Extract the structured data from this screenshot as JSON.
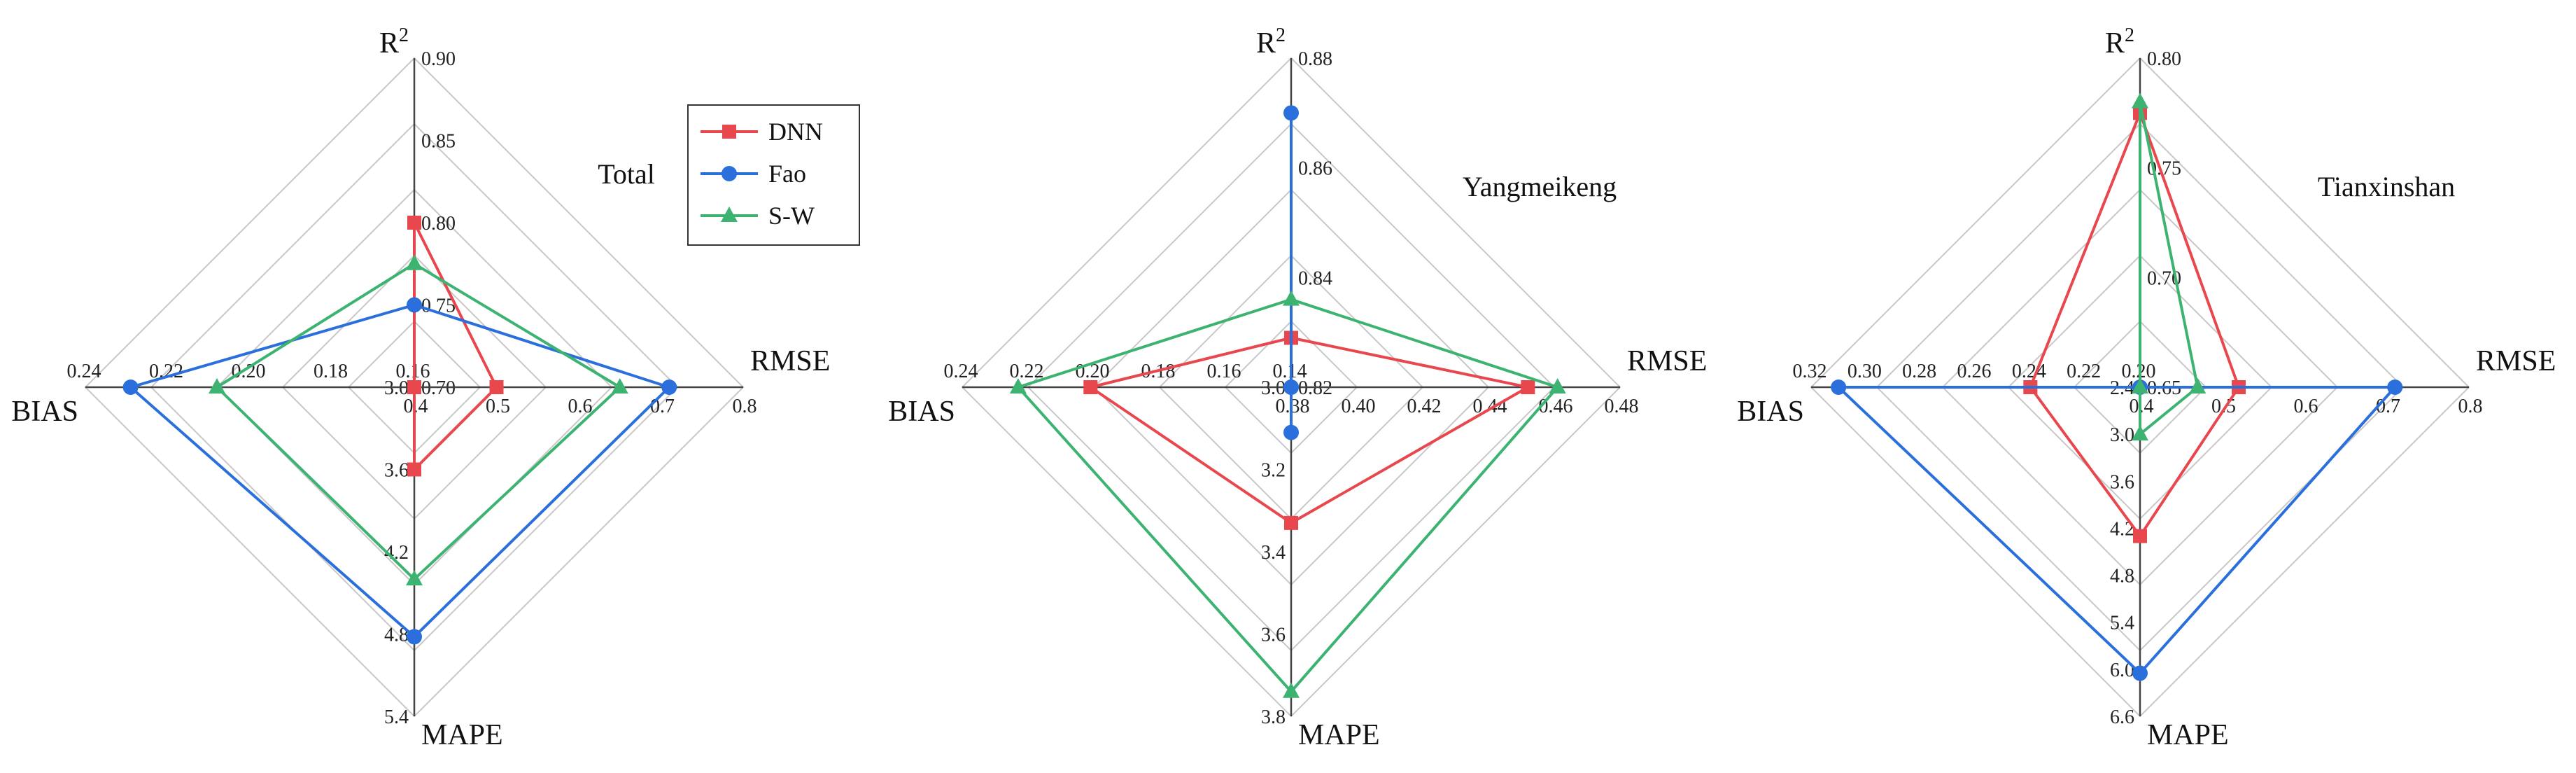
{
  "legend": [
    {
      "name": "DNN",
      "color": "#e8474d",
      "marker": "square"
    },
    {
      "name": "Fao",
      "color": "#2a6fdb",
      "marker": "circle"
    },
    {
      "name": "S-W",
      "color": "#3cb371",
      "marker": "triangle"
    }
  ],
  "chart_data": [
    {
      "type": "radar",
      "label": "Total",
      "axes": [
        {
          "name": "R",
          "sup": "2",
          "min": 0.7,
          "max": 0.9,
          "ticks": [
            "0.70",
            "0.75",
            "0.80",
            "0.85",
            "0.90"
          ]
        },
        {
          "name": "RMSE",
          "min": 0.4,
          "max": 0.8,
          "ticks": [
            "0.4",
            "0.5",
            "0.6",
            "0.7",
            "0.8"
          ]
        },
        {
          "name": "MAPE",
          "min": 3.0,
          "max": 5.4,
          "ticks": [
            "3.0",
            "3.6",
            "4.2",
            "4.8",
            "5.4"
          ]
        },
        {
          "name": "BIAS",
          "min": 0.16,
          "max": 0.24,
          "ticks": [
            "0.16",
            "0.18",
            "0.20",
            "0.22",
            "0.24"
          ]
        }
      ],
      "series": [
        {
          "name": "DNN",
          "values": [
            0.8,
            0.5,
            3.6,
            0.16
          ]
        },
        {
          "name": "Fao",
          "values": [
            0.75,
            0.71,
            4.82,
            0.229
          ]
        },
        {
          "name": "S-W",
          "values": [
            0.775,
            0.65,
            4.4,
            0.208
          ]
        }
      ]
    },
    {
      "type": "radar",
      "label": "Yangmeikeng",
      "axes": [
        {
          "name": "R",
          "sup": "2",
          "min": 0.82,
          "max": 0.88,
          "ticks": [
            "0.82",
            "0.84",
            "0.86",
            "0.88"
          ]
        },
        {
          "name": "RMSE",
          "min": 0.38,
          "max": 0.48,
          "ticks": [
            "0.38",
            "0.40",
            "0.42",
            "0.44",
            "0.46",
            "0.48"
          ]
        },
        {
          "name": "MAPE",
          "min": 3.0,
          "max": 3.8,
          "ticks": [
            "3.0",
            "3.2",
            "3.4",
            "3.6",
            "3.8"
          ]
        },
        {
          "name": "BIAS",
          "min": 0.14,
          "max": 0.24,
          "ticks": [
            "0.14",
            "0.16",
            "0.18",
            "0.20",
            "0.22",
            "0.24"
          ]
        }
      ],
      "series": [
        {
          "name": "DNN",
          "values": [
            0.829,
            0.452,
            3.33,
            0.201
          ]
        },
        {
          "name": "Fao",
          "values": [
            0.87,
            0.38,
            3.11,
            0.14
          ]
        },
        {
          "name": "S-W",
          "values": [
            0.836,
            0.461,
            3.74,
            0.223
          ]
        }
      ]
    },
    {
      "type": "radar",
      "label": "Tianxinshan",
      "axes": [
        {
          "name": "R",
          "sup": "2",
          "min": 0.65,
          "max": 0.8,
          "ticks": [
            "0.65",
            "0.70",
            "0.75",
            "0.80"
          ]
        },
        {
          "name": "RMSE",
          "min": 0.4,
          "max": 0.8,
          "ticks": [
            "0.4",
            "0.5",
            "0.6",
            "0.7",
            "0.8"
          ]
        },
        {
          "name": "MAPE",
          "min": 2.4,
          "max": 6.6,
          "ticks": [
            "2.4",
            "3.0",
            "3.6",
            "4.2",
            "4.8",
            "5.4",
            "6.0",
            "6.6"
          ]
        },
        {
          "name": "BIAS",
          "min": 0.2,
          "max": 0.32,
          "ticks": [
            "0.20",
            "0.22",
            "0.24",
            "0.26",
            "0.28",
            "0.30",
            "0.32"
          ]
        }
      ],
      "series": [
        {
          "name": "DNN",
          "values": [
            0.775,
            0.52,
            4.3,
            0.24
          ]
        },
        {
          "name": "Fao",
          "values": [
            0.65,
            0.71,
            6.05,
            0.31
          ]
        },
        {
          "name": "S-W",
          "values": [
            0.78,
            0.47,
            3.0,
            0.2
          ]
        }
      ]
    }
  ]
}
